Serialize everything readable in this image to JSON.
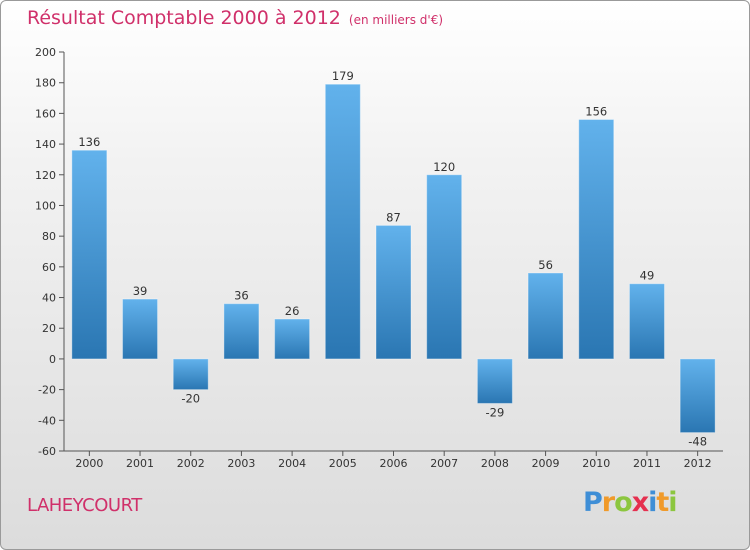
{
  "header": {
    "title": "Résultat Comptable 2000 à 2012",
    "subtitle": "(en milliers d'€)"
  },
  "commune": "LAHEYCOURT",
  "logo": {
    "text": "Proxiti",
    "letters": [
      {
        "ch": "P",
        "color": "#3e8ed6"
      },
      {
        "ch": "r",
        "color": "#f09a2a"
      },
      {
        "ch": "o",
        "color": "#8cc63f"
      },
      {
        "ch": "x",
        "color": "#e5304f"
      },
      {
        "ch": "i",
        "color": "#3e8ed6"
      },
      {
        "ch": "t",
        "color": "#f09a2a"
      },
      {
        "ch": "i",
        "color": "#8cc63f"
      }
    ]
  },
  "colors": {
    "bar_light": "#62b2ec",
    "bar_dark": "#2a76b2",
    "text_accent": "#d0306a"
  },
  "chart_data": {
    "type": "bar",
    "categories": [
      "2000",
      "2001",
      "2002",
      "2003",
      "2004",
      "2005",
      "2006",
      "2007",
      "2008",
      "2009",
      "2010",
      "2011",
      "2012"
    ],
    "values": [
      136,
      39,
      -20,
      36,
      26,
      179,
      87,
      120,
      -29,
      56,
      156,
      49,
      -48
    ],
    "value_labels": [
      "136",
      "39",
      "-20",
      "36",
      "26",
      "179",
      "87",
      "120",
      "-29",
      "56",
      "156",
      "49",
      "-48"
    ],
    "ylim": [
      -60,
      200
    ],
    "yticks": [
      -60,
      -40,
      -20,
      0,
      20,
      40,
      60,
      80,
      100,
      120,
      140,
      160,
      180,
      200
    ],
    "grid": false,
    "legend": "none"
  }
}
